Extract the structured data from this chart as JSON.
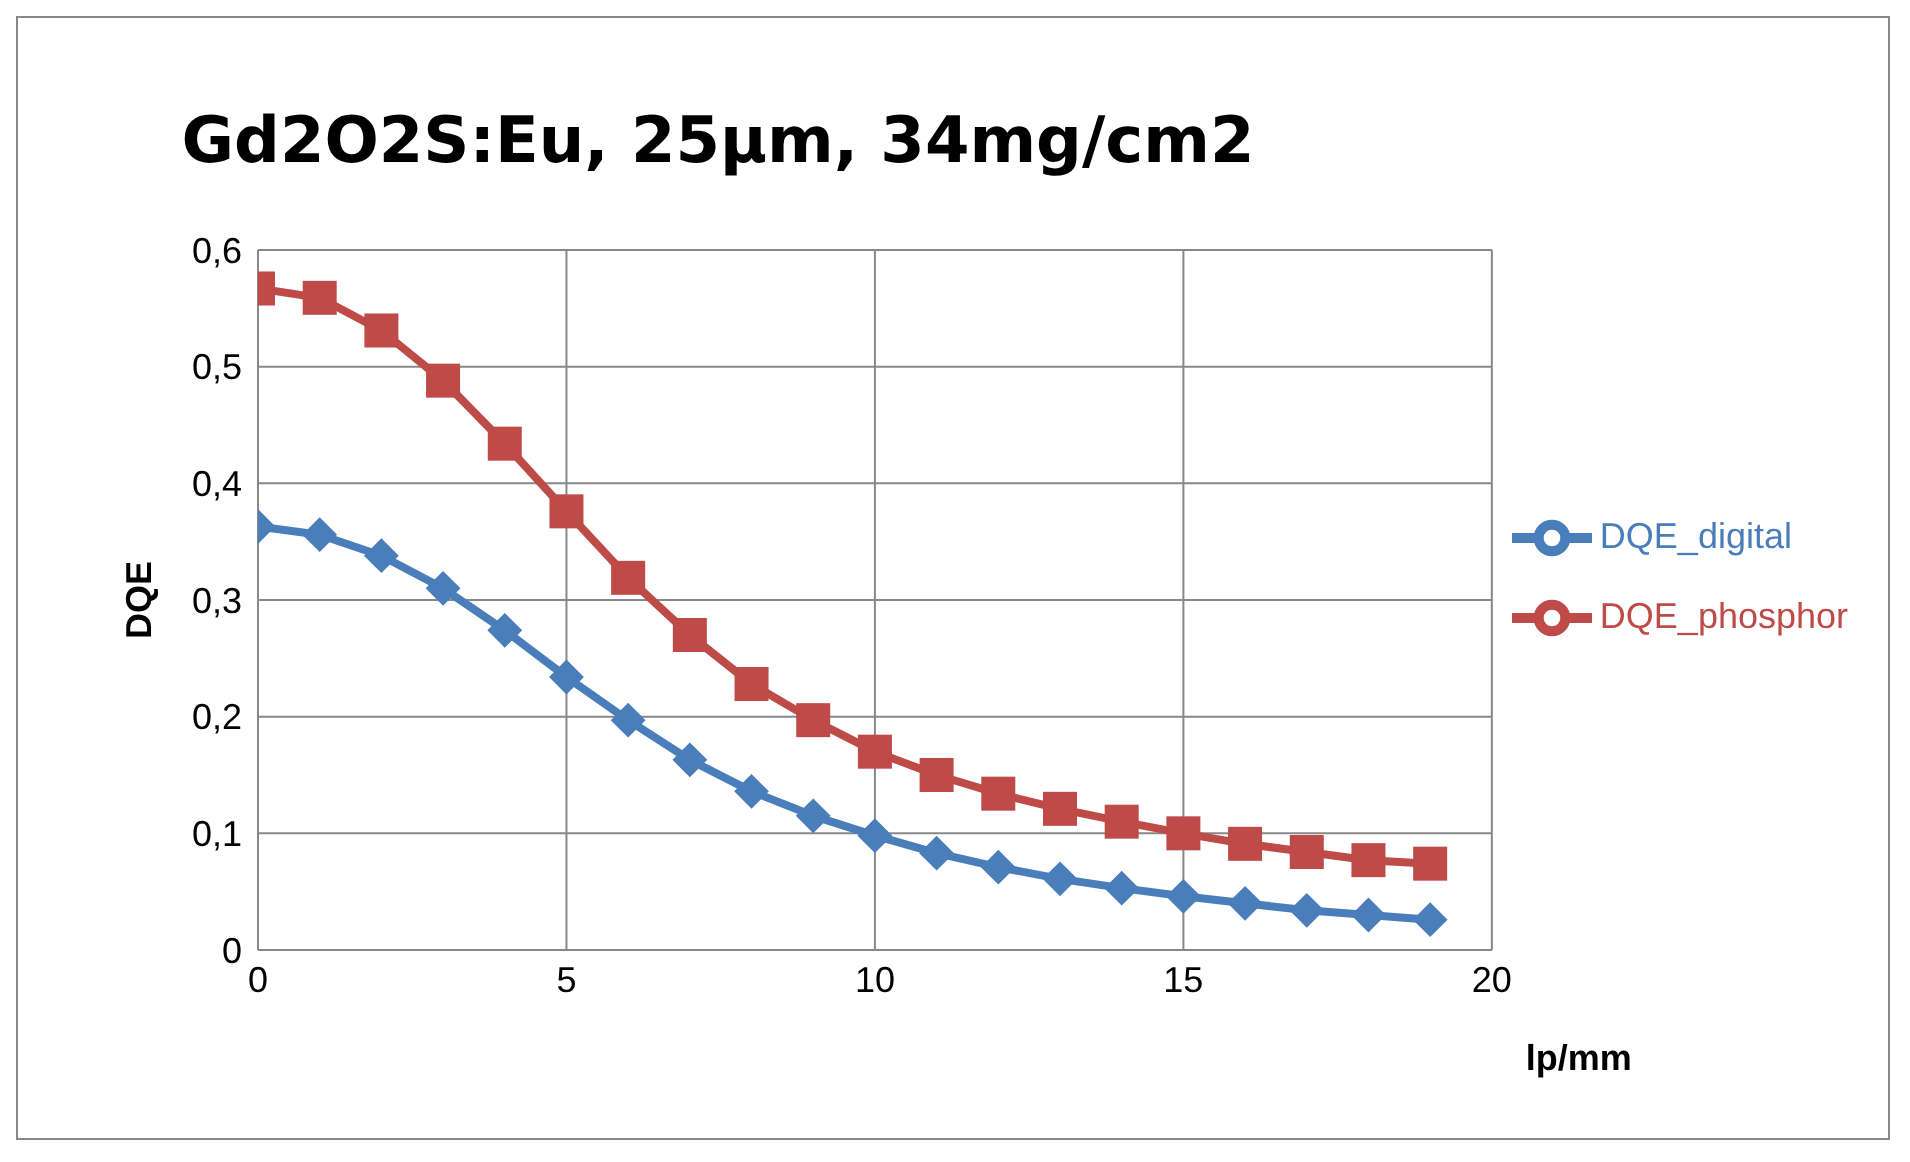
{
  "chart_data": {
    "type": "line",
    "title": "Gd2O2S:Eu, 25µm, 34mg/cm2",
    "xlabel": "lp/mm",
    "ylabel": "DQE",
    "x": [
      0,
      1,
      2,
      3,
      4,
      5,
      6,
      7,
      8,
      9,
      10,
      11,
      12,
      13,
      14,
      15,
      16,
      17,
      18,
      19
    ],
    "series": [
      {
        "name": "DQE_digital",
        "color": "#4a7ebb",
        "marker": "diamond",
        "values": [
          0.363,
          0.356,
          0.338,
          0.31,
          0.274,
          0.234,
          0.197,
          0.163,
          0.136,
          0.115,
          0.098,
          0.083,
          0.071,
          0.061,
          0.053,
          0.046,
          0.04,
          0.034,
          0.03,
          0.026
        ]
      },
      {
        "name": "DQE_phosphor",
        "color": "#be4b48",
        "marker": "square",
        "values": [
          0.567,
          0.559,
          0.531,
          0.488,
          0.434,
          0.376,
          0.319,
          0.27,
          0.228,
          0.197,
          0.17,
          0.15,
          0.134,
          0.121,
          0.11,
          0.1,
          0.091,
          0.084,
          0.077,
          0.074
        ]
      }
    ],
    "xlim": [
      0,
      20
    ],
    "xticks": [
      0,
      5,
      10,
      15,
      20
    ],
    "ylim": [
      0,
      0.6
    ],
    "yticks": [
      {
        "value": 0,
        "label": "0"
      },
      {
        "value": 0.1,
        "label": "0,1"
      },
      {
        "value": 0.2,
        "label": "0,2"
      },
      {
        "value": 0.3,
        "label": "0,3"
      },
      {
        "value": 0.4,
        "label": "0,4"
      },
      {
        "value": 0.5,
        "label": "0,5"
      },
      {
        "value": 0.6,
        "label": "0,6"
      }
    ],
    "grid": true,
    "legend": "right",
    "line_style": "solid"
  }
}
